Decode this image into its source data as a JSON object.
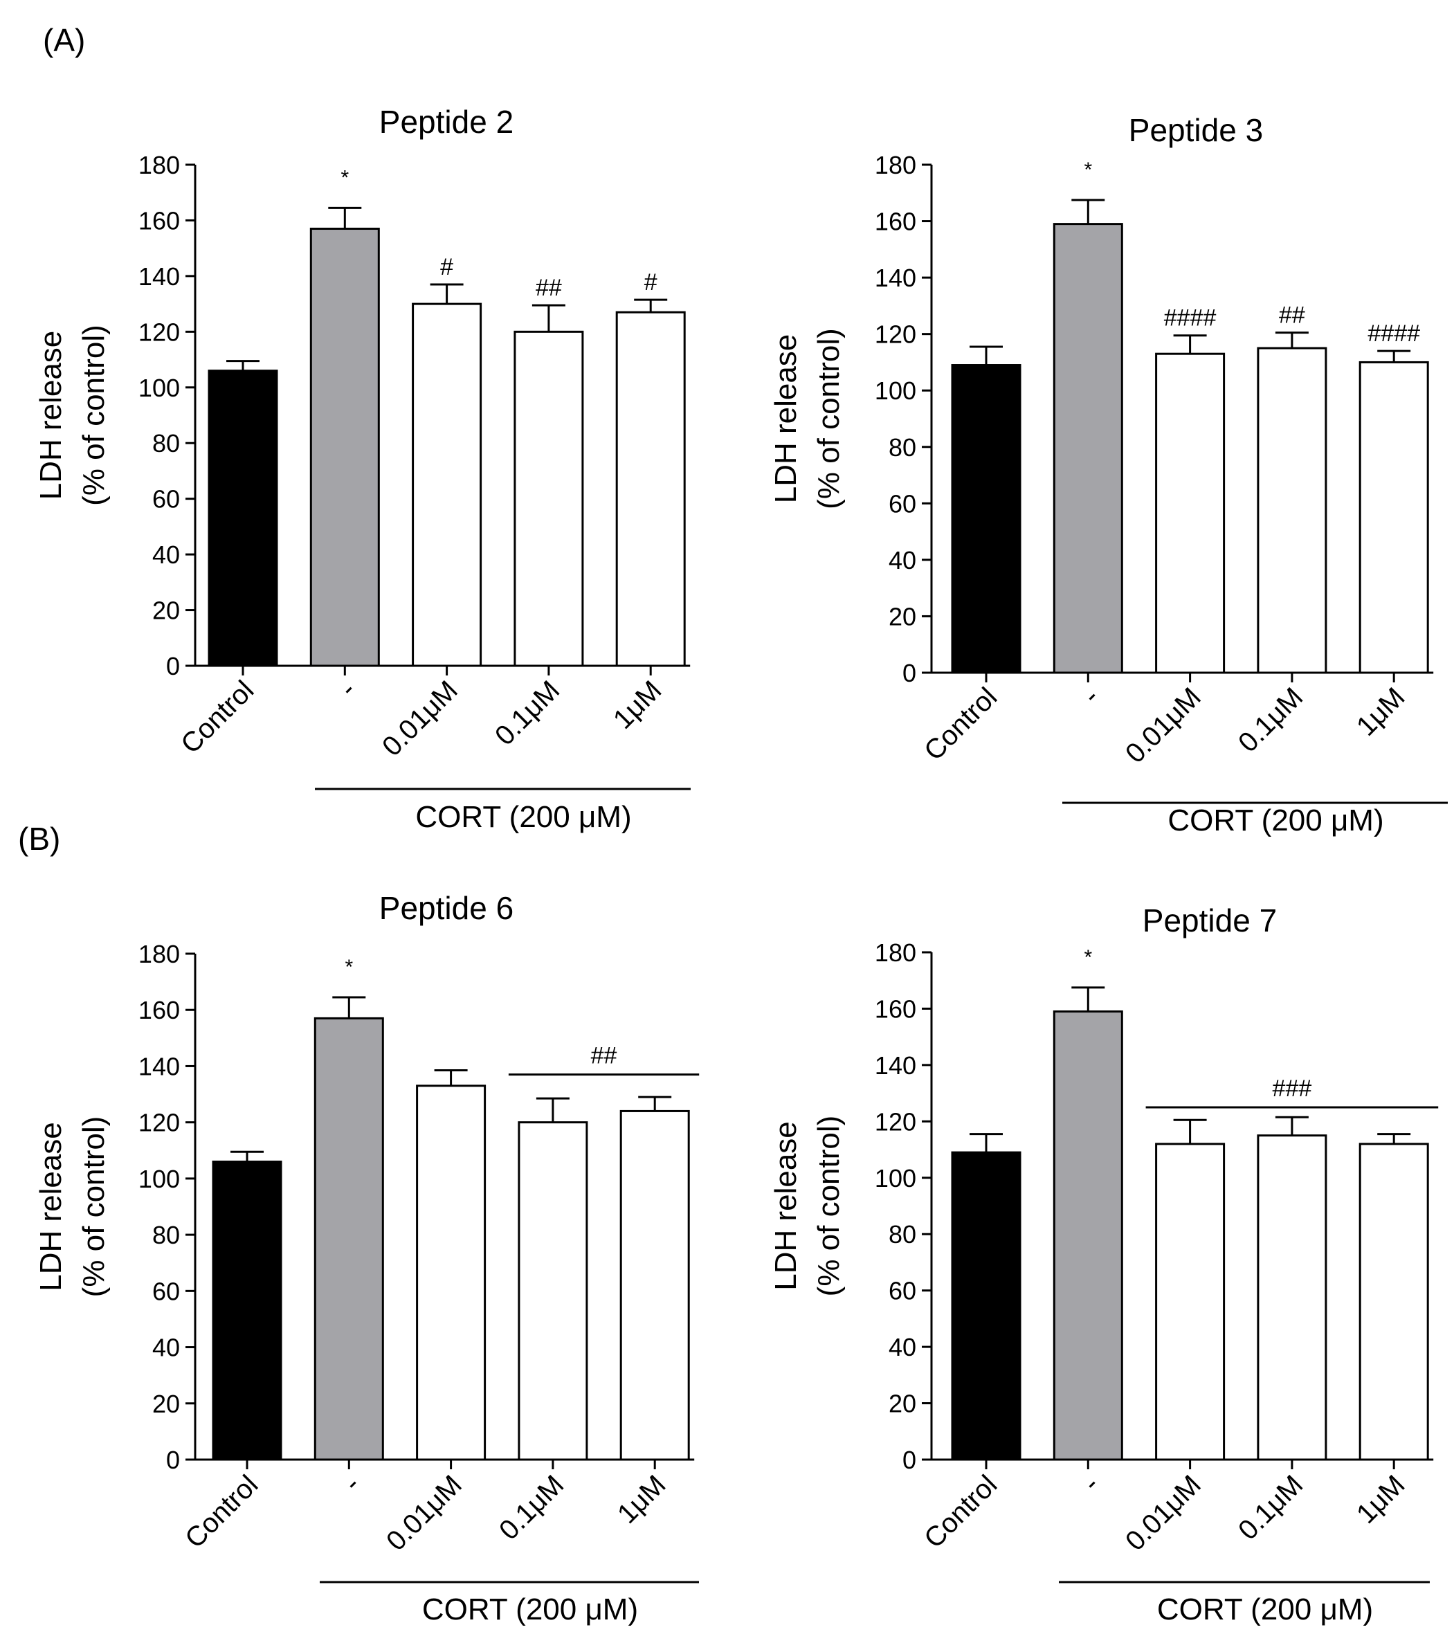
{
  "panel_labels": [
    "(A)",
    "(B)"
  ],
  "colors": {
    "control": "#000000",
    "cort": "#a4a4a8",
    "peptide": "#ffffff",
    "stroke": "#000000"
  },
  "chart_data": [
    {
      "type": "bar",
      "title": "Peptide 2",
      "categories": [
        "Control",
        "-",
        "0.01μM",
        "0.1μM",
        "1μM"
      ],
      "values": [
        106,
        157,
        130,
        120,
        127
      ],
      "errors": [
        3.5,
        7.5,
        7,
        9.5,
        4.5
      ],
      "annotations": [
        "",
        "*",
        "#",
        "##",
        "#"
      ],
      "bracket": null,
      "ylabel": "LDH release",
      "ylabel2": "(% of control)",
      "ylim": [
        0,
        180
      ],
      "yticks": [
        "0",
        "20",
        "40",
        "60",
        "80",
        "100",
        "120",
        "140",
        "160",
        "180"
      ],
      "group_label": "CORT (200 μM)"
    },
    {
      "type": "bar",
      "title": "Peptide 3",
      "categories": [
        "Control",
        "-",
        "0.01μM",
        "0.1μM",
        "1μM"
      ],
      "values": [
        109,
        159,
        113,
        115,
        110
      ],
      "errors": [
        6.5,
        8.5,
        6.5,
        5.5,
        4
      ],
      "annotations": [
        "",
        "*",
        "####",
        "##",
        "####"
      ],
      "bracket": null,
      "ylabel": "LDH release",
      "ylabel2": "(% of control)",
      "ylim": [
        0,
        180
      ],
      "yticks": [
        "0",
        "20",
        "40",
        "60",
        "80",
        "100",
        "120",
        "140",
        "160",
        "180"
      ],
      "group_label": "CORT (200 μM)"
    },
    {
      "type": "bar",
      "title": "Peptide 6",
      "categories": [
        "Control",
        "-",
        "0.01μM",
        "0.1μM",
        "1μM"
      ],
      "values": [
        106,
        157,
        133,
        120,
        124
      ],
      "errors": [
        3.5,
        7.5,
        5.5,
        8.5,
        5
      ],
      "annotations": [
        "",
        "*",
        "",
        "",
        ""
      ],
      "bracket": {
        "label": "##",
        "from": 3,
        "to": 4,
        "level": 137
      },
      "ylabel": "LDH release",
      "ylabel2": "(% of control)",
      "ylim": [
        0,
        180
      ],
      "yticks": [
        "0",
        "20",
        "40",
        "60",
        "80",
        "100",
        "120",
        "140",
        "160",
        "180"
      ],
      "group_label": "CORT (200 μM)"
    },
    {
      "type": "bar",
      "title": "Peptide 7",
      "categories": [
        "Control",
        "-",
        "0.01μM",
        "0.1μM",
        "1μM"
      ],
      "values": [
        109,
        159,
        112,
        115,
        112
      ],
      "errors": [
        6.5,
        8.5,
        8.5,
        6.5,
        3.5
      ],
      "annotations": [
        "",
        "*",
        "",
        "",
        ""
      ],
      "bracket": {
        "label": "###",
        "from": 2,
        "to": 4,
        "level": 125
      },
      "ylabel": "LDH release",
      "ylabel2": "(% of control)",
      "ylim": [
        0,
        180
      ],
      "yticks": [
        "0",
        "20",
        "40",
        "60",
        "80",
        "100",
        "120",
        "140",
        "160",
        "180"
      ],
      "group_label": "CORT (200 μM)"
    }
  ]
}
